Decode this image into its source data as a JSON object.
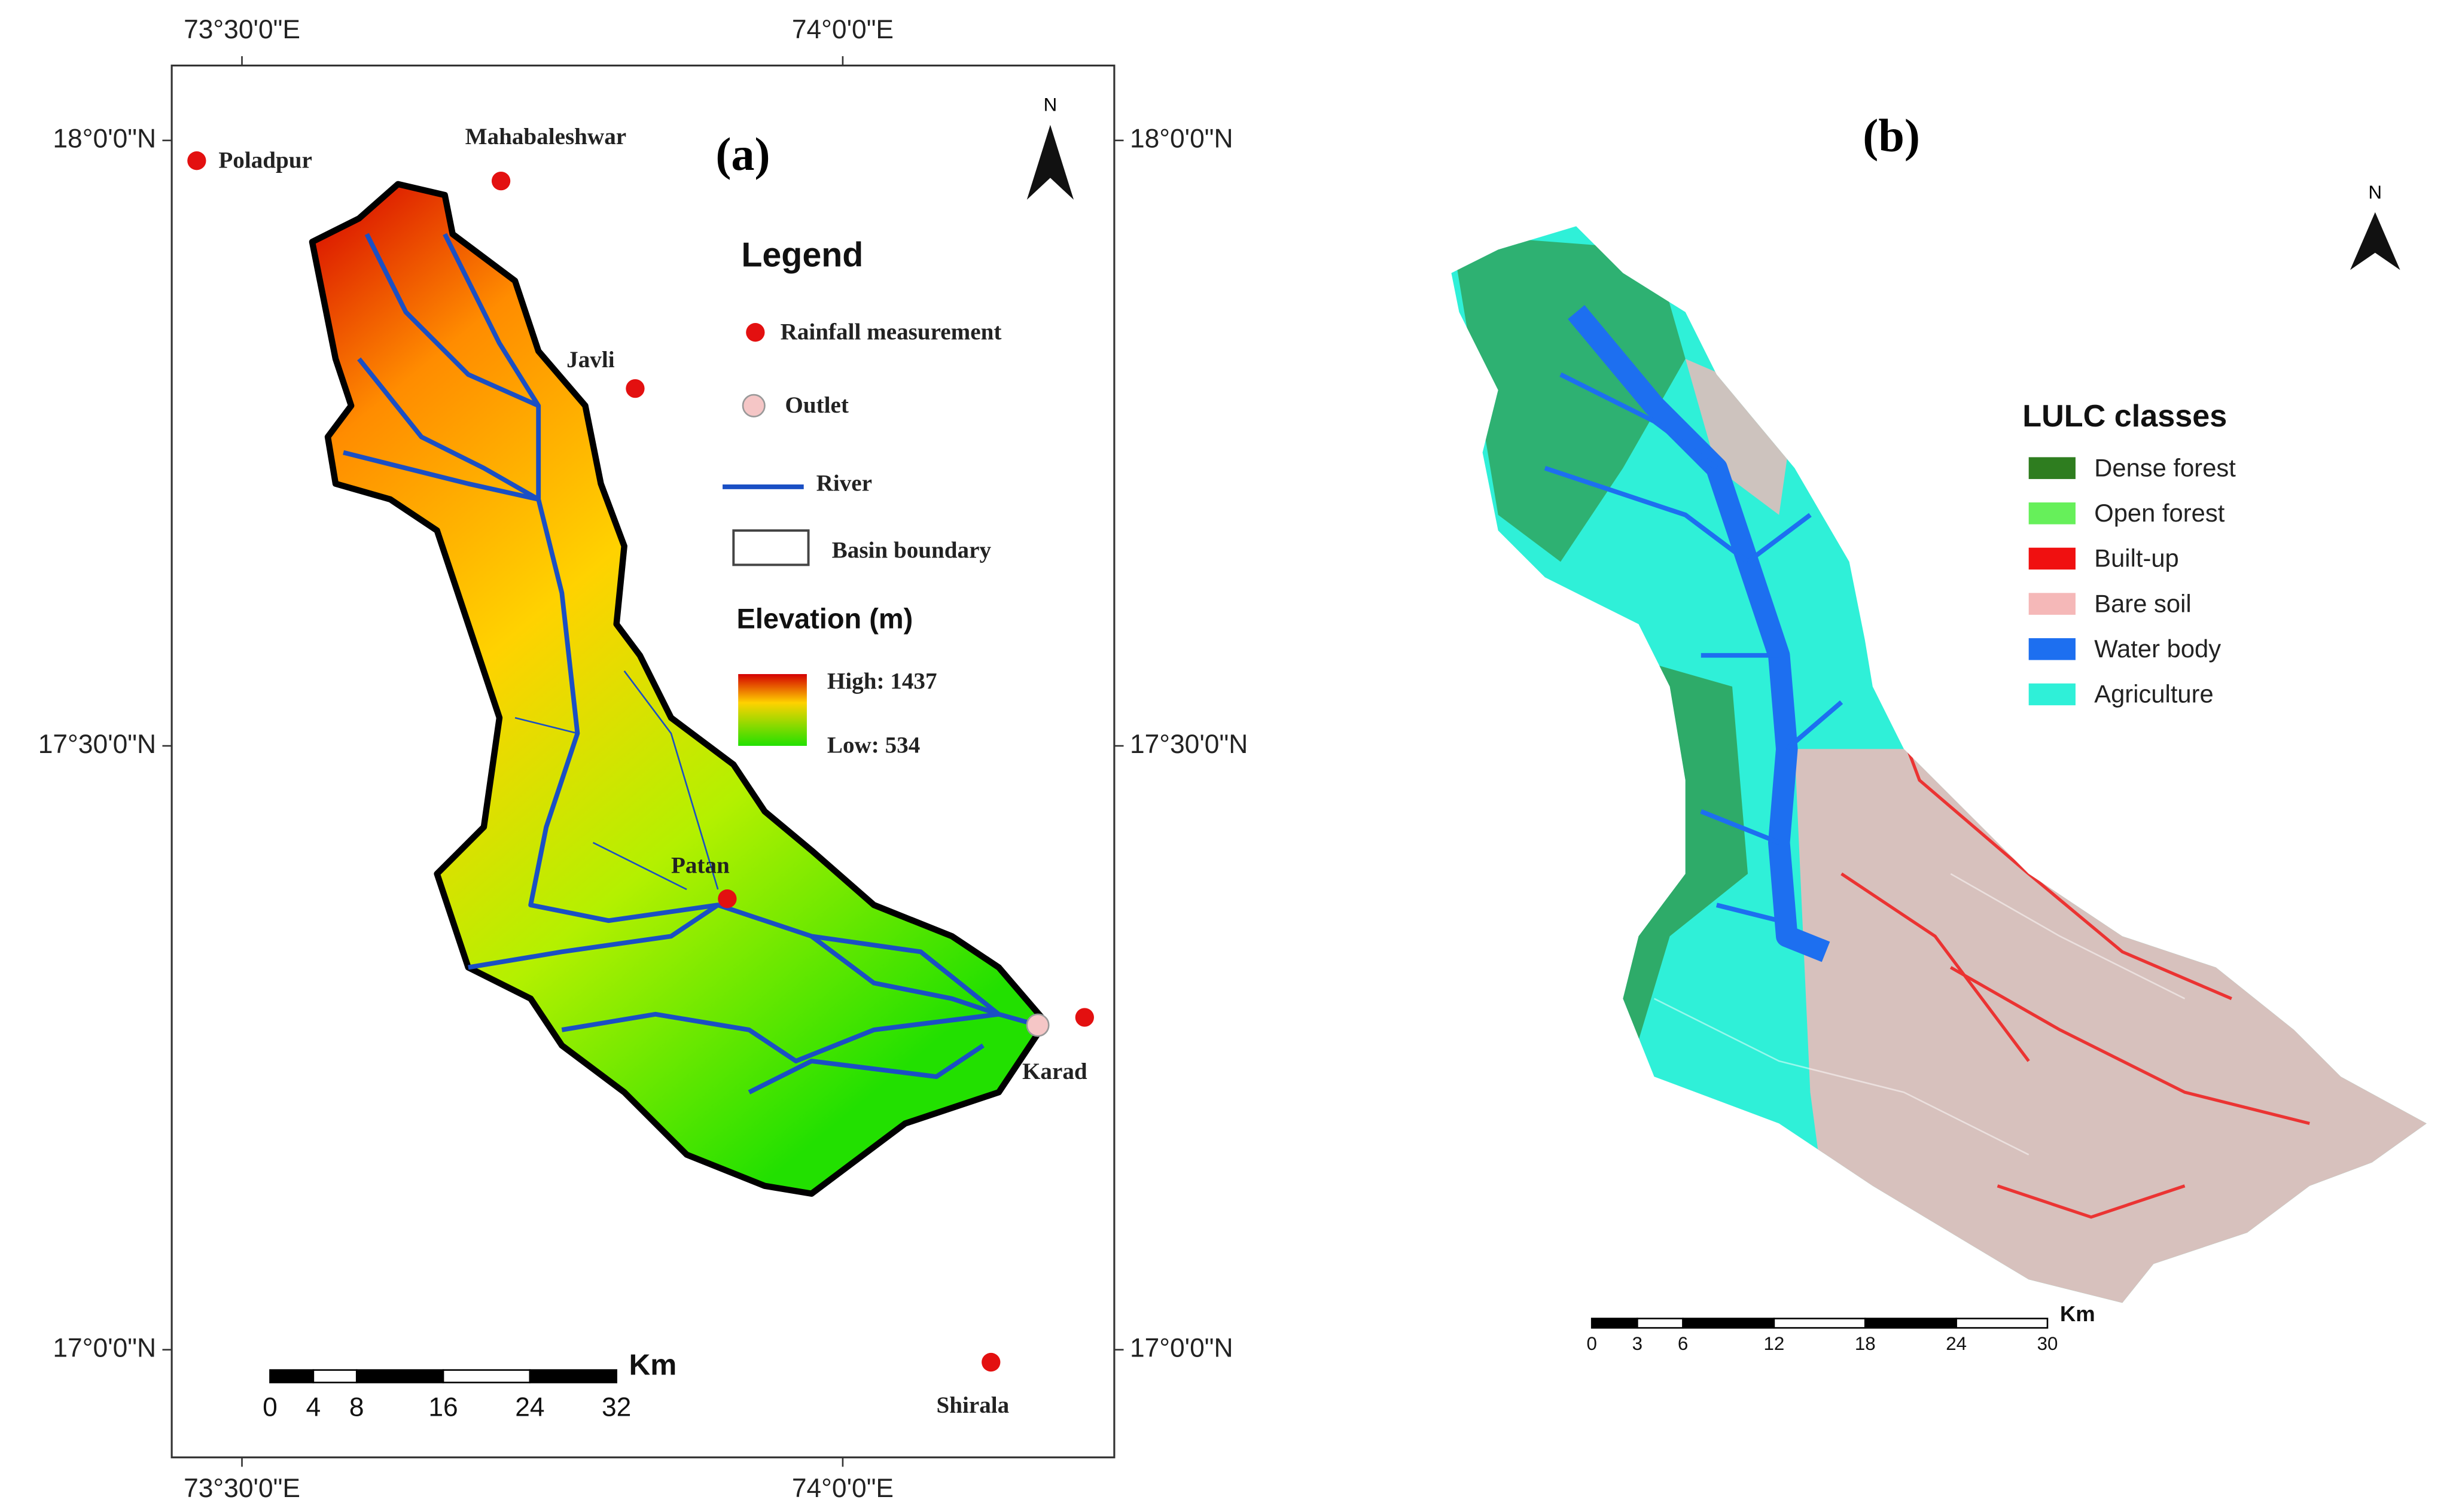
{
  "panel_a": {
    "label": "(a)",
    "north": "N",
    "lon_labels": [
      "73°30'0\"E",
      "74°0'0\"E"
    ],
    "lat_labels": [
      "18°0'0\"N",
      "17°30'0\"N",
      "17°0'0\"N"
    ],
    "places": [
      "Poladpur",
      "Mahabaleshwar",
      "Javli",
      "Patan",
      "Karad",
      "Shirala"
    ],
    "legend": {
      "title": "Legend",
      "items": [
        "Rainfall measurement",
        "Outlet",
        "River",
        "Basin boundary"
      ],
      "elevation_title": "Elevation (m)",
      "high": "High: 1437",
      "low": "Low: 534"
    },
    "scale": {
      "unit": "Km",
      "ticks": [
        0,
        4,
        8,
        16,
        24,
        32
      ]
    }
  },
  "panel_b": {
    "label": "(b)",
    "north": "N",
    "legend": {
      "title": "LULC classes",
      "classes": [
        {
          "name": "Dense forest",
          "color": "#2e7d1f"
        },
        {
          "name": "Open forest",
          "color": "#66f05a"
        },
        {
          "name": "Built-up",
          "color": "#f01010"
        },
        {
          "name": "Bare soil",
          "color": "#f5b8b8"
        },
        {
          "name": "Water body",
          "color": "#1d6ff0"
        },
        {
          "name": "Agriculture",
          "color": "#2ff0d8"
        }
      ]
    },
    "scale": {
      "unit": "Km",
      "ticks": [
        0,
        3,
        6,
        12,
        18,
        24,
        30
      ]
    }
  }
}
